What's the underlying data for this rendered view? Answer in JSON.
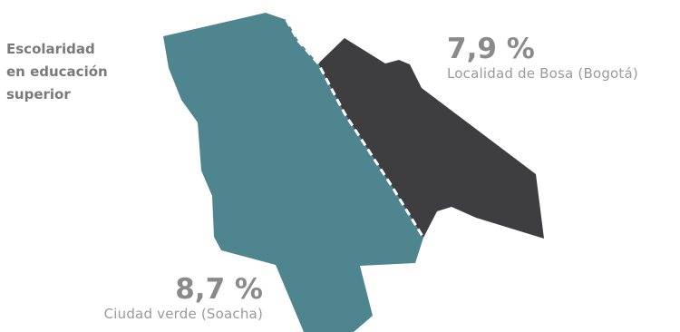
{
  "title_lines": [
    "Escolaridad",
    "en educación",
    "superior"
  ],
  "regions": [
    {
      "id": "bosa",
      "value_label": "7,9 %",
      "value": 7.9,
      "place": "Localidad de Bosa (Bogotá)",
      "color": "#3e3e41"
    },
    {
      "id": "soacha",
      "value_label": "8,7 %",
      "value": 8.7,
      "place": "Ciudad verde (Soacha)",
      "color": "#4e858e"
    }
  ],
  "border_color": "#ffffff"
}
